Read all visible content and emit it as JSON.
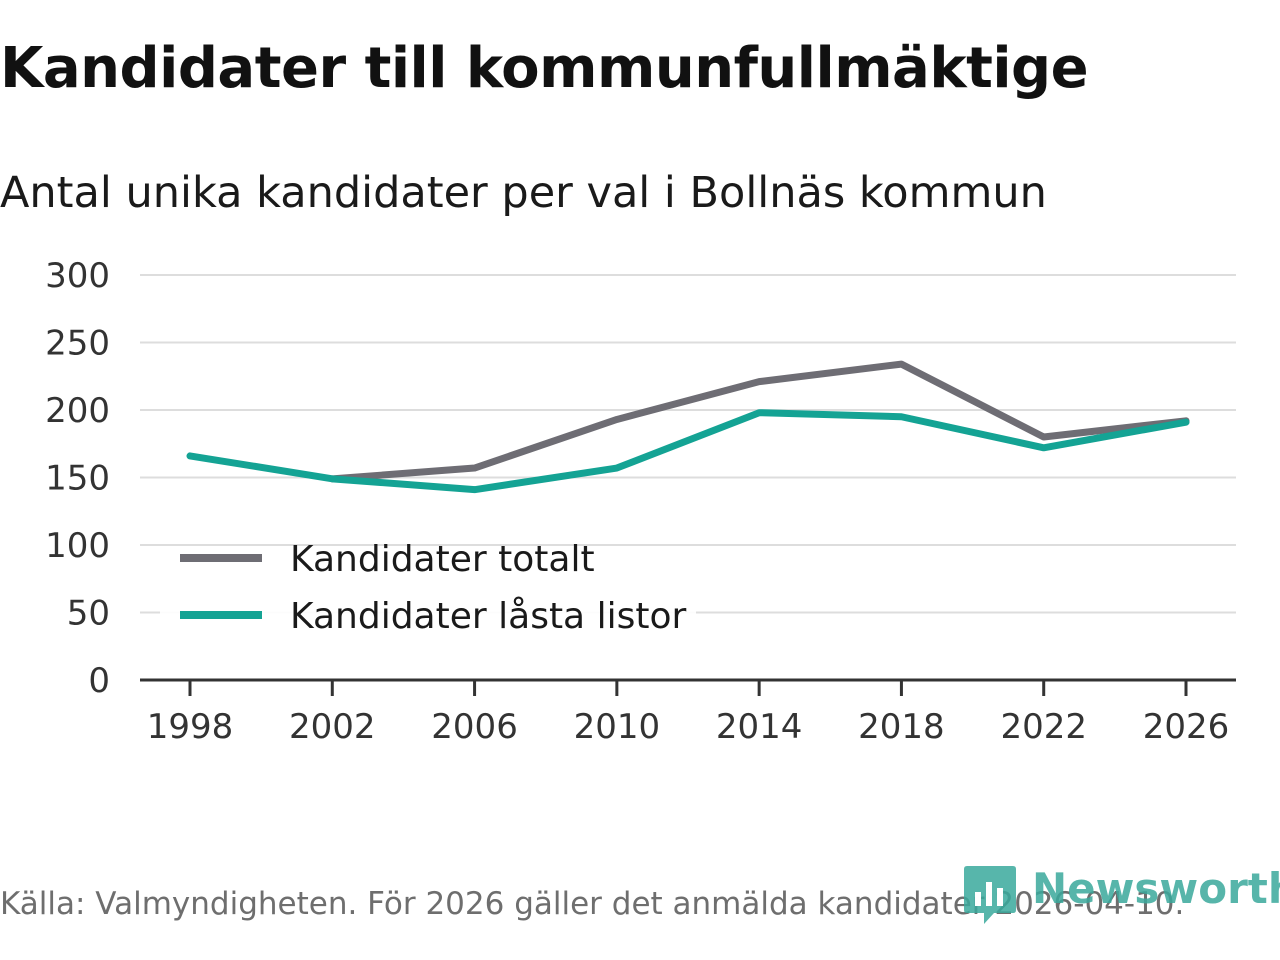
{
  "header": {
    "title": "Kandidater till kommunfullmäktige",
    "subtitle": "Antal unika kandidater per val i Bollnäs kommun"
  },
  "footer": {
    "source": "Källa: Valmyndigheten. För 2026 gäller det anmälda kandidater 2026-04-10.",
    "brand_name": "Newsworthy",
    "brand_icon": "newsworthy-logo-icon"
  },
  "colors": {
    "totalt": "#6e6d74",
    "lasta": "#14a394",
    "grid": "#dddddd",
    "axis": "#333333",
    "brand": "#3aa99c"
  },
  "chart_data": {
    "type": "line",
    "title": "Kandidater till kommunfullmäktige",
    "subtitle": "Antal unika kandidater per val i Bollnäs kommun",
    "xlabel": "",
    "ylabel": "",
    "x": [
      1998,
      2002,
      2006,
      2010,
      2014,
      2018,
      2022,
      2026
    ],
    "x_ticks": [
      "1998",
      "2002",
      "2006",
      "2010",
      "2014",
      "2018",
      "2022",
      "2026"
    ],
    "y_ticks": [
      "0",
      "50",
      "100",
      "150",
      "200",
      "250",
      "300"
    ],
    "ylim": [
      0,
      300
    ],
    "grid": true,
    "legend_position": "lower-left",
    "series": [
      {
        "name": "Kandidater totalt",
        "color": "#6e6d74",
        "values": [
          null,
          149,
          157,
          193,
          221,
          234,
          180,
          192
        ]
      },
      {
        "name": "Kandidater låsta listor",
        "color": "#14a394",
        "values": [
          166,
          149,
          141,
          157,
          198,
          195,
          172,
          191
        ]
      }
    ]
  }
}
